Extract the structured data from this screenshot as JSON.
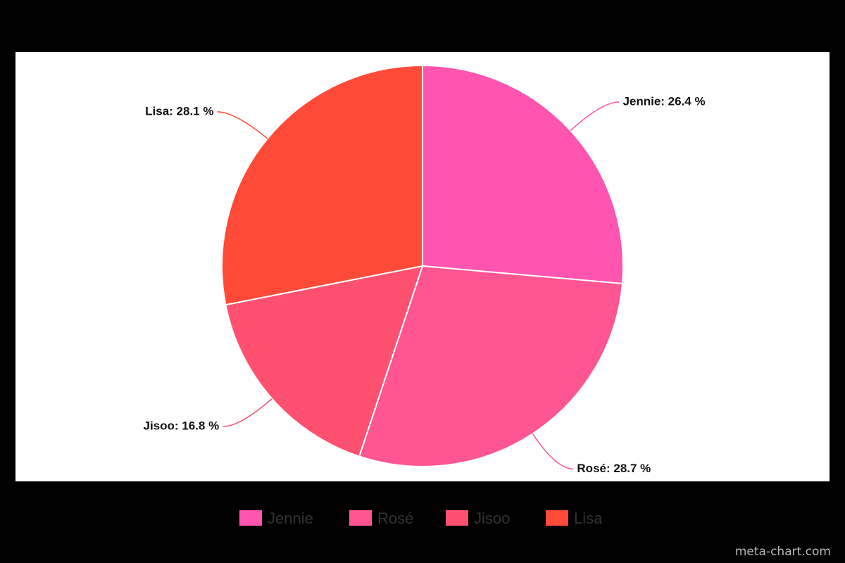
{
  "chart_data": {
    "type": "pie",
    "categories": [
      "Jennie",
      "Rosé",
      "Jisoo",
      "Lisa"
    ],
    "values": [
      26.4,
      28.7,
      16.8,
      28.1
    ],
    "value_labels": [
      "Jennie: 26.4 %",
      "Rosé: 28.7 %",
      "Jisoo: 16.8 %",
      "Lisa: 28.1 %"
    ],
    "colors": [
      "#ff55b0",
      "#ff5590",
      "#ff5070",
      "#ff4a38"
    ],
    "legend": "bottom",
    "credit": "meta-chart.com"
  }
}
